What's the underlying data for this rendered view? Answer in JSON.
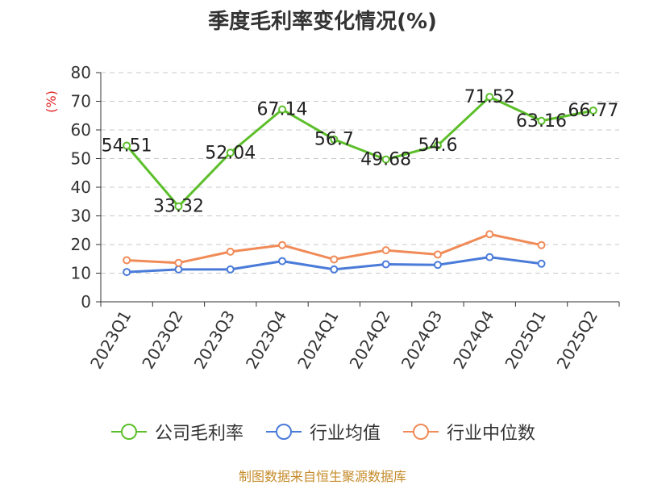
{
  "title": "季度毛利率变化情况(%)",
  "source": "制图数据来自恒生聚源数据库",
  "chart_data": {
    "type": "line",
    "title": "季度毛利率变化情况(%)",
    "ylabel": "(%)",
    "xlabel": "",
    "ylim": [
      0,
      80
    ],
    "yticks": [
      0,
      10,
      20,
      30,
      40,
      50,
      60,
      70,
      80
    ],
    "grid": true,
    "legend_position": "bottom",
    "categories": [
      "2023Q1",
      "2023Q2",
      "2023Q3",
      "2023Q4",
      "2024Q1",
      "2024Q2",
      "2024Q3",
      "2024Q4",
      "2025Q1",
      "2025Q2"
    ],
    "series": [
      {
        "name": "公司毛利率",
        "color": "#5cbf2a",
        "values": [
          54.51,
          33.32,
          52.04,
          67.14,
          56.7,
          49.68,
          54.6,
          71.52,
          63.16,
          66.77
        ],
        "labels": [
          "54.51",
          "33.32",
          "52.04",
          "67.14",
          "56.7",
          "49.68",
          "54.6",
          "71.52",
          "63.16",
          "66.77"
        ]
      },
      {
        "name": "行业均值",
        "color": "#4a7bd8",
        "values": [
          10.4,
          11.3,
          11.3,
          14.2,
          11.3,
          13.1,
          12.9,
          15.6,
          13.3,
          null
        ]
      },
      {
        "name": "行业中位数",
        "color": "#f08b58",
        "values": [
          14.5,
          13.6,
          17.5,
          19.8,
          14.8,
          18.0,
          16.5,
          23.6,
          19.8,
          null
        ]
      }
    ]
  }
}
